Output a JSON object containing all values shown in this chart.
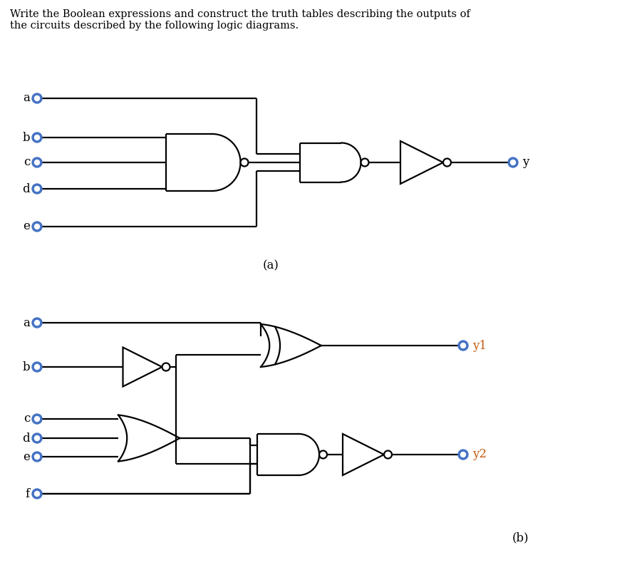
{
  "title_text": "Write the Boolean expressions and construct the truth tables describing the outputs of\nthe circuits described by the following logic diagrams.",
  "title_fontsize": 10.5,
  "label_fontsize": 12,
  "bg_color": "#ffffff",
  "line_color": "#000000",
  "circle_color": "#4472c4",
  "output_label_color": "#c55a11",
  "diagram_a_label": "(a)",
  "diagram_b_label": "(b)",
  "lw": 1.6
}
